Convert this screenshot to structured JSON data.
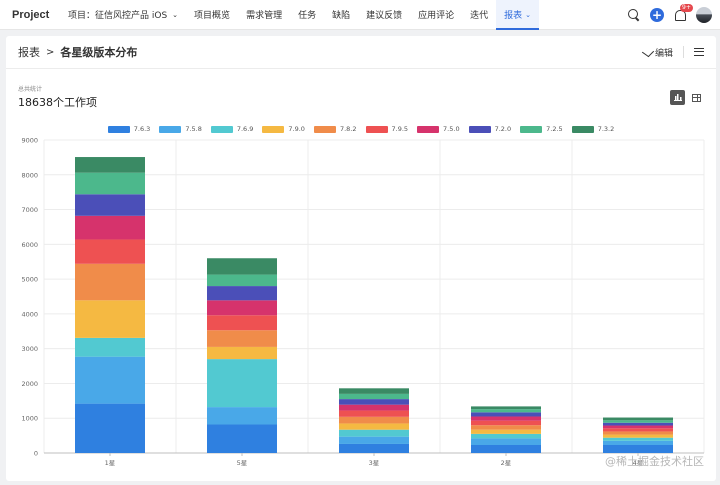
{
  "topbar": {
    "brand": "Project",
    "project_selector": "项目：征信风控产品 iOS",
    "nav": [
      {
        "label": "项目概览",
        "active": false
      },
      {
        "label": "需求管理",
        "active": false
      },
      {
        "label": "任务",
        "active": false
      },
      {
        "label": "缺陷",
        "active": false
      },
      {
        "label": "建议反馈",
        "active": false
      },
      {
        "label": "应用评论",
        "active": false
      },
      {
        "label": "迭代",
        "active": false
      },
      {
        "label": "报表",
        "active": true
      }
    ],
    "notification_count": "9+",
    "icons": [
      "search-icon",
      "plus-icon",
      "bell-icon",
      "avatar"
    ]
  },
  "header": {
    "breadcrumb_root": "报表",
    "breadcrumb_sep": ">",
    "breadcrumb_current": "各星级版本分布",
    "edit_label": "编辑"
  },
  "stats": {
    "label": "总共统计",
    "value": "18638个工作项"
  },
  "watermark": "@稀土掘金技术社区",
  "chart_data": {
    "type": "bar",
    "stacked": true,
    "categories": [
      "1星",
      "5星",
      "3星",
      "2星",
      "4星"
    ],
    "ylim": [
      0,
      9000
    ],
    "yticks": [
      0,
      1000,
      2000,
      3000,
      4000,
      5000,
      6000,
      7000,
      8000,
      9000
    ],
    "legend_position": "top",
    "grid": true,
    "series": [
      {
        "name": "7.6.3",
        "color": "#2f80e0",
        "values": [
          1420,
          820,
          260,
          230,
          230
        ]
      },
      {
        "name": "7.5.8",
        "color": "#49a8e8",
        "values": [
          1350,
          500,
          210,
          190,
          120
        ]
      },
      {
        "name": "7.6.9",
        "color": "#52c9d1",
        "values": [
          540,
          1380,
          200,
          130,
          90
        ]
      },
      {
        "name": "7.9.0",
        "color": "#f5b942",
        "values": [
          1080,
          350,
          180,
          120,
          90
        ]
      },
      {
        "name": "7.8.2",
        "color": "#f08c4a",
        "values": [
          1050,
          480,
          190,
          130,
          90
        ]
      },
      {
        "name": "7.9.5",
        "color": "#ee5152",
        "values": [
          700,
          430,
          180,
          130,
          90
        ]
      },
      {
        "name": "7.5.0",
        "color": "#d6336c",
        "values": [
          680,
          430,
          170,
          120,
          80
        ]
      },
      {
        "name": "7.2.0",
        "color": "#4b4fb8",
        "values": [
          620,
          410,
          160,
          120,
          80
        ]
      },
      {
        "name": "7.2.5",
        "color": "#4cb88c",
        "values": [
          620,
          330,
          150,
          90,
          70
        ]
      },
      {
        "name": "7.3.2",
        "color": "#3a8a64",
        "values": [
          450,
          470,
          160,
          80,
          80
        ]
      }
    ]
  }
}
